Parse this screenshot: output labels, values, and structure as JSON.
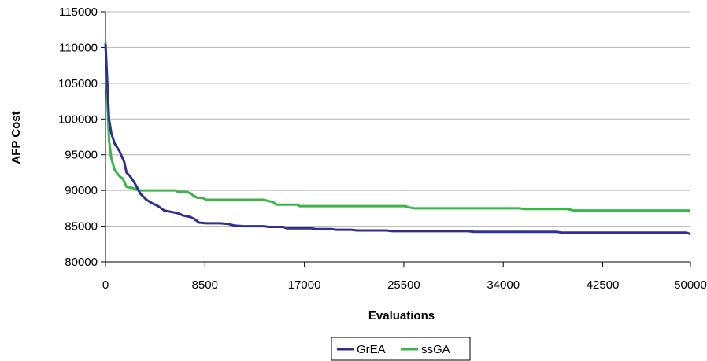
{
  "chart_data": {
    "type": "line",
    "title": "",
    "xlabel": "Evaluations",
    "ylabel": "AFP Cost",
    "xlim": [
      0,
      50000
    ],
    "ylim": [
      80000,
      115000
    ],
    "x_ticks": [
      "0",
      "8500",
      "17000",
      "25500",
      "34000",
      "42500",
      "50000"
    ],
    "y_ticks": [
      "80000",
      "85000",
      "90000",
      "95000",
      "100000",
      "105000",
      "110000",
      "115000"
    ],
    "grid": "horizontal",
    "legend_position": "bottom",
    "series": [
      {
        "name": "GrEA",
        "color": "#2e3192",
        "points": [
          [
            0,
            110500
          ],
          [
            100,
            107000
          ],
          [
            300,
            100000
          ],
          [
            500,
            98000
          ],
          [
            800,
            96500
          ],
          [
            1200,
            95500
          ],
          [
            1600,
            94000
          ],
          [
            1800,
            92500
          ],
          [
            2100,
            92000
          ],
          [
            2500,
            91000
          ],
          [
            3000,
            89500
          ],
          [
            3500,
            88700
          ],
          [
            4000,
            88200
          ],
          [
            4500,
            87800
          ],
          [
            5000,
            87200
          ],
          [
            5600,
            87000
          ],
          [
            6200,
            86800
          ],
          [
            6600,
            86500
          ],
          [
            7200,
            86300
          ],
          [
            7600,
            86000
          ],
          [
            8000,
            85500
          ],
          [
            8600,
            85400
          ],
          [
            9800,
            85400
          ],
          [
            10500,
            85300
          ],
          [
            11000,
            85100
          ],
          [
            11800,
            85000
          ],
          [
            13500,
            85000
          ],
          [
            14000,
            84900
          ],
          [
            15200,
            84900
          ],
          [
            15500,
            84700
          ],
          [
            17600,
            84700
          ],
          [
            18000,
            84600
          ],
          [
            19300,
            84600
          ],
          [
            19700,
            84500
          ],
          [
            21000,
            84500
          ],
          [
            21500,
            84400
          ],
          [
            24000,
            84400
          ],
          [
            24500,
            84300
          ],
          [
            31000,
            84300
          ],
          [
            31500,
            84200
          ],
          [
            38600,
            84200
          ],
          [
            39000,
            84100
          ],
          [
            49600,
            84100
          ],
          [
            50000,
            83900
          ]
        ]
      },
      {
        "name": "ssGA",
        "color": "#39b54a",
        "points": [
          [
            0,
            110700
          ],
          [
            150,
            103000
          ],
          [
            300,
            97000
          ],
          [
            500,
            94500
          ],
          [
            800,
            92800
          ],
          [
            1200,
            92000
          ],
          [
            1500,
            91600
          ],
          [
            1800,
            90500
          ],
          [
            2400,
            90300
          ],
          [
            2800,
            90000
          ],
          [
            6000,
            90000
          ],
          [
            6200,
            89800
          ],
          [
            7000,
            89800
          ],
          [
            7300,
            89500
          ],
          [
            7800,
            89000
          ],
          [
            8400,
            88900
          ],
          [
            8600,
            88700
          ],
          [
            13500,
            88700
          ],
          [
            14000,
            88500
          ],
          [
            14300,
            88400
          ],
          [
            14600,
            88000
          ],
          [
            16400,
            88000
          ],
          [
            16600,
            87800
          ],
          [
            25600,
            87800
          ],
          [
            26000,
            87600
          ],
          [
            26400,
            87500
          ],
          [
            35400,
            87500
          ],
          [
            35800,
            87400
          ],
          [
            39500,
            87400
          ],
          [
            40000,
            87200
          ],
          [
            50000,
            87200
          ]
        ]
      }
    ]
  }
}
